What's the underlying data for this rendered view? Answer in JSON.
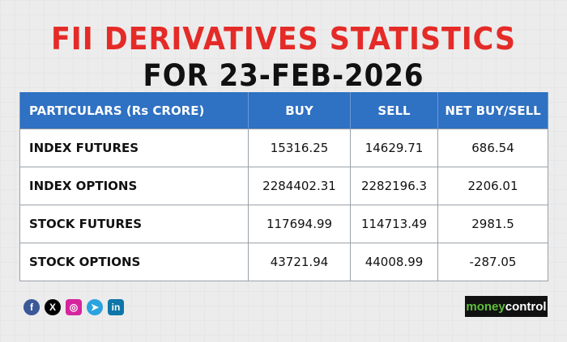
{
  "title_line1": "FII DERIVATIVES STATISTICS",
  "title_line2": "FOR  23-FEB-2026",
  "table": {
    "headers": [
      "PARTICULARS (Rs CRORE)",
      "BUY",
      "SELL",
      "NET BUY/SELL"
    ],
    "rows": [
      [
        "INDEX FUTURES",
        "15316.25",
        "14629.71",
        "686.54"
      ],
      [
        "INDEX OPTIONS",
        "2284402.31",
        "2282196.3",
        "2206.01"
      ],
      [
        "STOCK FUTURES",
        "117694.99",
        "114713.49",
        "2981.5"
      ],
      [
        "STOCK OPTIONS",
        "43721.94",
        "44008.99",
        "-287.05"
      ]
    ]
  },
  "socials": [
    {
      "icon": "facebook-icon",
      "glyph": "f",
      "color": "#3b5998"
    },
    {
      "icon": "x-icon",
      "glyph": "X",
      "color": "#000000"
    },
    {
      "icon": "instagram-icon",
      "glyph": "◎",
      "color": "#d6249f"
    },
    {
      "icon": "telegram-icon",
      "glyph": "➤",
      "color": "#2aa3df"
    },
    {
      "icon": "linkedin-icon",
      "glyph": "in",
      "color": "#0e76a8"
    }
  ],
  "logo": {
    "part1": "money",
    "part2": "control"
  }
}
